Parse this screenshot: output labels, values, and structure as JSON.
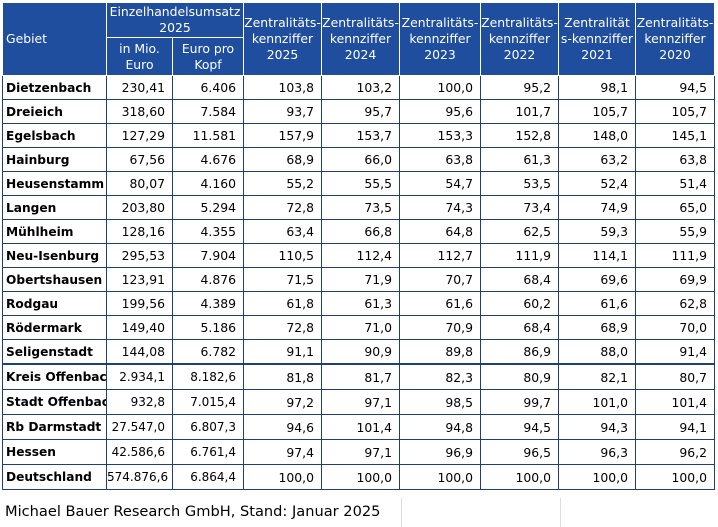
{
  "header": {
    "gebiet": "Gebiet",
    "umsatz_group": "Einzelhandelsumsatz 2025",
    "umsatz_mio": "in Mio. Euro",
    "umsatz_kopf": "Euro pro Kopf",
    "z2025": "Zentralitäts-kennziffer 2025",
    "z2024": "Zentralitäts-kennziffer 2024",
    "z2023": "Zentralitäts-kennziffer 2023",
    "z2022": "Zentralitäts-kennziffer 2022",
    "z2021": "Zentralität s-kennziffer 2021",
    "z2020": "Zentralitäts-kennziffer 2020"
  },
  "rows": [
    [
      "Dietzenbach",
      "230,41",
      "6.406",
      "103,8",
      "103,2",
      "100,0",
      "95,2",
      "98,1",
      "94,5"
    ],
    [
      "Dreieich",
      "318,60",
      "7.584",
      "93,7",
      "95,7",
      "95,6",
      "101,7",
      "105,7",
      "105,7"
    ],
    [
      "Egelsbach",
      "127,29",
      "11.581",
      "157,9",
      "153,7",
      "153,3",
      "152,8",
      "148,0",
      "145,1"
    ],
    [
      "Hainburg",
      "67,56",
      "4.676",
      "68,9",
      "66,0",
      "63,8",
      "61,3",
      "63,2",
      "63,8"
    ],
    [
      "Heusenstamm",
      "80,07",
      "4.160",
      "55,2",
      "55,5",
      "54,7",
      "53,5",
      "52,4",
      "51,4"
    ],
    [
      "Langen",
      "203,80",
      "5.294",
      "72,8",
      "73,5",
      "74,3",
      "73,4",
      "74,9",
      "65,0"
    ],
    [
      "Mühlheim",
      "128,16",
      "4.355",
      "63,4",
      "66,8",
      "64,8",
      "62,5",
      "59,3",
      "55,9"
    ],
    [
      "Neu-Isenburg",
      "295,53",
      "7.904",
      "110,5",
      "112,4",
      "112,7",
      "111,9",
      "114,1",
      "111,9"
    ],
    [
      "Obertshausen",
      "123,91",
      "4.876",
      "71,5",
      "71,9",
      "70,7",
      "68,4",
      "69,6",
      "69,9"
    ],
    [
      "Rodgau",
      "199,56",
      "4.389",
      "61,8",
      "61,3",
      "61,6",
      "60,2",
      "61,6",
      "62,8"
    ],
    [
      "Rödermark",
      "149,40",
      "5.186",
      "72,8",
      "71,0",
      "70,9",
      "68,4",
      "68,9",
      "70,0"
    ],
    [
      "Seligenstadt",
      "144,08",
      "6.782",
      "91,1",
      "90,9",
      "89,8",
      "86,9",
      "88,0",
      "91,4"
    ],
    [
      "Kreis Offenbach",
      "2.934,1",
      "8.182,6",
      "81,8",
      "81,7",
      "82,3",
      "80,9",
      "82,1",
      "80,7"
    ],
    [
      "Stadt Offenbach",
      "932,8",
      "7.015,4",
      "97,2",
      "97,1",
      "98,5",
      "99,7",
      "101,0",
      "101,4"
    ],
    [
      "Rb Darmstadt",
      "27.547,0",
      "6.807,3",
      "94,6",
      "101,4",
      "94,8",
      "94,5",
      "94,3",
      "94,1"
    ],
    [
      "Hessen",
      "42.586,6",
      "6.761,4",
      "97,4",
      "97,1",
      "96,9",
      "96,5",
      "96,3",
      "96,2"
    ],
    [
      "Deutschland",
      "574.876,6",
      "6.864,4",
      "100,0",
      "100,0",
      "100,0",
      "100,0",
      "100,0",
      "100,0"
    ]
  ],
  "footer": "Michael Bauer Research GmbH, Stand: Januar 2025"
}
